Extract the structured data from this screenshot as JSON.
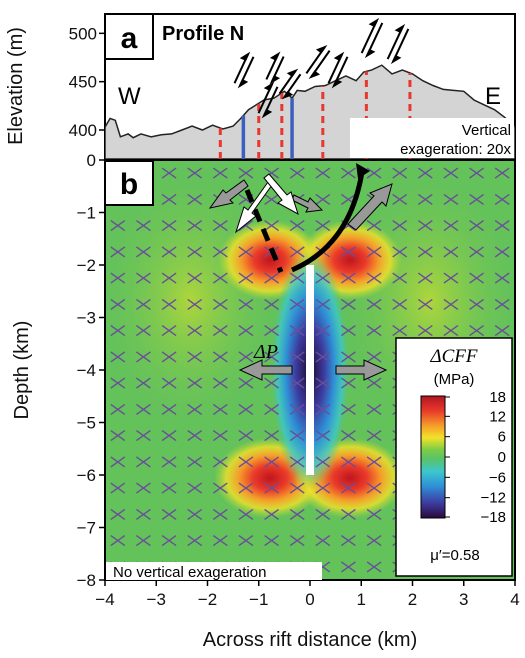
{
  "chart_data": [
    {
      "panel": "a",
      "type": "area",
      "title": "Profile N",
      "ylabel": "Elevation (m)",
      "ylim": [
        370,
        520
      ],
      "yticks": [
        400,
        450,
        500
      ],
      "direction_labels": [
        "W",
        "E"
      ],
      "annotation": [
        "Vertical",
        "exageration: 20x"
      ],
      "x": [
        -4.0,
        -3.9,
        -3.8,
        -3.7,
        -3.55,
        -3.45,
        -3.3,
        -3.1,
        -2.9,
        -2.7,
        -2.5,
        -2.3,
        -2.1,
        -1.9,
        -1.7,
        -1.5,
        -1.35,
        -1.2,
        -1.05,
        -0.9,
        -0.7,
        -0.5,
        -0.35,
        -0.25,
        -0.1,
        0.1,
        0.3,
        0.5,
        0.7,
        0.9,
        1.05,
        1.2,
        1.4,
        1.6,
        1.8,
        2.0,
        2.2,
        2.4,
        2.6,
        2.8,
        3.0,
        3.2,
        3.4,
        3.6,
        3.8,
        4.0
      ],
      "y": [
        403,
        412,
        410,
        393,
        396,
        392,
        396,
        393,
        395,
        396,
        400,
        404,
        400,
        405,
        401,
        404,
        412,
        421,
        426,
        431,
        433,
        440,
        433,
        441,
        440,
        445,
        446,
        451,
        456,
        451,
        460,
        462,
        467,
        458,
        462,
        458,
        451,
        446,
        442,
        441,
        440,
        431,
        426,
        421,
        413,
        403
      ],
      "dike_markers_red_dashed_x": [
        -1.75,
        -1.0,
        -0.55,
        0.25,
        1.1,
        1.95
      ],
      "dike_markers_blue_x": [
        -1.3,
        -0.35
      ]
    },
    {
      "panel": "b",
      "type": "heatmap",
      "xlabel": "Across rift distance (km)",
      "ylabel": "Depth (km)",
      "xlim": [
        -4,
        4
      ],
      "ylim": [
        -8,
        0
      ],
      "xticks": [
        -4,
        -3,
        -2,
        -1,
        0,
        1,
        2,
        3,
        4
      ],
      "yticks": [
        0,
        -1,
        -2,
        -3,
        -4,
        -5,
        -6,
        -7,
        -8
      ],
      "colorbar": {
        "label": "ΔCFF",
        "units": "(MPa)",
        "ticks": [
          18,
          12,
          6,
          0,
          -6,
          -12,
          -18
        ],
        "range": [
          -18,
          18
        ]
      },
      "dike": {
        "x": 0,
        "top": -2,
        "bottom": -6
      },
      "pressure_label": "ΔP",
      "friction_label": "μ′=0.58",
      "footnote": "No vertical exageration"
    }
  ],
  "colors": {
    "topography_fill": "#d4d4d4",
    "dike_red": "#e8372e",
    "dike_blue": "#3a5fbf",
    "colormap": [
      "#2a0a3d",
      "#3d3a9e",
      "#2f8fd6",
      "#3cc7cf",
      "#58c26b",
      "#7ccd45",
      "#c8dc2e",
      "#f4e12a",
      "#f59a2a",
      "#e8392a",
      "#b01622"
    ],
    "background_field": "#64c25a"
  },
  "icons": [
    "opening-arrow-icon",
    "fault-offset-arrow-icon"
  ]
}
